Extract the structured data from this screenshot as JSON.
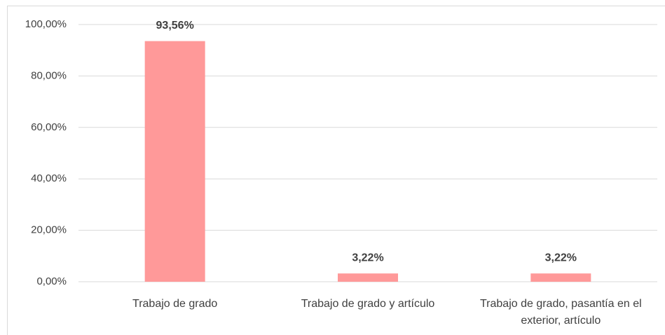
{
  "chart_data": {
    "type": "bar",
    "categories": [
      "Trabajo de grado",
      "Trabajo de grado y artículo",
      "Trabajo de grado, pasantía en el exterior, artículo"
    ],
    "values": [
      93.56,
      3.22,
      3.22
    ],
    "value_labels": [
      "93,56%",
      "3,22%",
      "3,22%"
    ],
    "color": "#ff9999",
    "ylim": [
      0,
      100
    ],
    "yticks": [
      {
        "value": 0,
        "label": "0,00%"
      },
      {
        "value": 20,
        "label": "20,00%"
      },
      {
        "value": 40,
        "label": "40,00%"
      },
      {
        "value": 60,
        "label": "60,00%"
      },
      {
        "value": 80,
        "label": "80,00%"
      },
      {
        "value": 100,
        "label": "100,00%"
      }
    ],
    "grid": true
  }
}
